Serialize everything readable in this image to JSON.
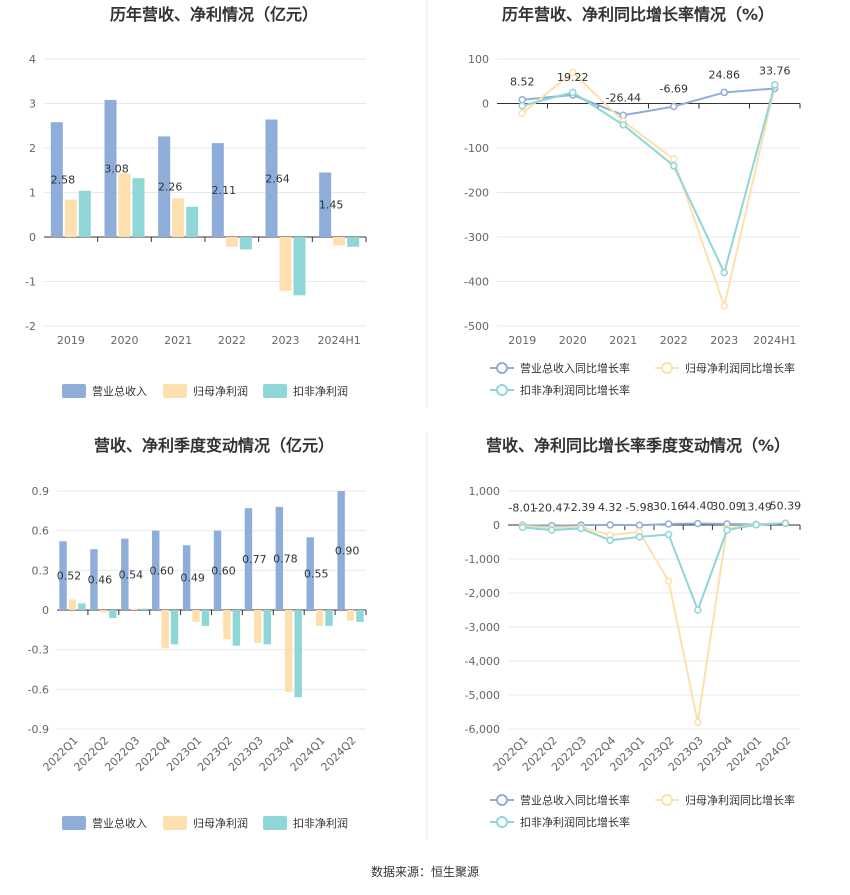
{
  "colors": {
    "revenue": "#8eadd9",
    "net_profit": "#fde0ad",
    "deducted_profit": "#8fd6d6",
    "line_revenue": "#8eadd9",
    "line_net": "#fde0ad",
    "line_deducted": "#8fd6d6",
    "divider": "#e8e8e8"
  },
  "source_text": "数据来源：恒生聚源",
  "chart_data": [
    {
      "type": "bar",
      "title": "历年营收、净利情况（亿元）",
      "categories": [
        "2019",
        "2020",
        "2021",
        "2022",
        "2023",
        "2024H1"
      ],
      "series": [
        {
          "name": "营业总收入",
          "values": [
            2.58,
            3.08,
            2.26,
            2.11,
            2.64,
            1.45
          ]
        },
        {
          "name": "归母净利润",
          "values": [
            0.84,
            1.43,
            0.87,
            -0.22,
            -1.21,
            -0.19
          ]
        },
        {
          "name": "扣非净利润",
          "values": [
            1.04,
            1.32,
            0.68,
            -0.28,
            -1.31,
            -0.22
          ]
        }
      ],
      "data_labels": [
        "2.58",
        "3.08",
        "2.26",
        "2.11",
        "2.64",
        "1.45"
      ],
      "yticks": [
        "4",
        "3",
        "2",
        "1",
        "0",
        "-1",
        "-2"
      ],
      "ylim": [
        -2,
        4
      ],
      "legend_position": "bottom",
      "grid": true
    },
    {
      "type": "line",
      "title": "历年营收、净利同比增长率情况（%）",
      "categories": [
        "2019",
        "2020",
        "2021",
        "2022",
        "2023",
        "2024H1"
      ],
      "series": [
        {
          "name": "营业总收入同比增长率",
          "values": [
            8.52,
            19.22,
            -26.44,
            -6.69,
            24.86,
            33.76
          ]
        },
        {
          "name": "归母净利润同比增长率",
          "values": [
            -22,
            70,
            -40,
            -125,
            -455,
            40
          ]
        },
        {
          "name": "扣非净利润同比增长率",
          "values": [
            -5,
            25,
            -48,
            -140,
            -380,
            42
          ]
        }
      ],
      "data_labels": [
        "8.52",
        "19.22",
        "-26.44",
        "-6.69",
        "24.86",
        "33.76"
      ],
      "yticks": [
        "100",
        "0",
        "-100",
        "-200",
        "-300",
        "-400",
        "-500"
      ],
      "ylim": [
        -500,
        100
      ],
      "legend_position": "bottom",
      "grid": true
    },
    {
      "type": "bar",
      "title": "营收、净利季度变动情况（亿元）",
      "categories": [
        "2022Q1",
        "2022Q2",
        "2022Q3",
        "2022Q4",
        "2023Q1",
        "2023Q2",
        "2023Q3",
        "2023Q4",
        "2024Q1",
        "2024Q2"
      ],
      "series": [
        {
          "name": "营业总收入",
          "values": [
            0.52,
            0.46,
            0.54,
            0.6,
            0.49,
            0.6,
            0.77,
            0.78,
            0.55,
            0.9
          ]
        },
        {
          "name": "归母净利润",
          "values": [
            0.08,
            -0.02,
            0.01,
            -0.29,
            -0.09,
            -0.22,
            -0.25,
            -0.62,
            -0.12,
            -0.08
          ]
        },
        {
          "name": "扣非净利润",
          "values": [
            0.05,
            -0.06,
            0.01,
            -0.26,
            -0.12,
            -0.27,
            -0.26,
            -0.66,
            -0.12,
            -0.09
          ]
        }
      ],
      "data_labels": [
        "0.52",
        "0.46",
        "0.54",
        "0.60",
        "0.49",
        "0.60",
        "0.77",
        "0.78",
        "0.55",
        "0.90"
      ],
      "yticks": [
        "0.9",
        "0.6",
        "0.3",
        "0",
        "-0.3",
        "-0.6",
        "-0.9"
      ],
      "ylim": [
        -0.9,
        0.9
      ],
      "legend_position": "bottom",
      "grid": true
    },
    {
      "type": "line",
      "title": "营收、净利同比增长率季度变动情况（%）",
      "categories": [
        "2022Q1",
        "2022Q2",
        "2022Q3",
        "2022Q4",
        "2023Q1",
        "2023Q2",
        "2023Q3",
        "2023Q4",
        "2024Q1",
        "2024Q2"
      ],
      "series": [
        {
          "name": "营业总收入同比增长率",
          "values": [
            -8.01,
            -20.47,
            -2.39,
            4.32,
            -5.98,
            30.16,
            44.4,
            30.09,
            13.49,
            50.39
          ]
        },
        {
          "name": "归母净利润同比增长率",
          "values": [
            -30,
            -100,
            -50,
            -300,
            -200,
            -1650,
            -5800,
            -100,
            20,
            60
          ]
        },
        {
          "name": "扣非净利润同比增长率",
          "values": [
            -70,
            -150,
            -100,
            -450,
            -350,
            -280,
            -2500,
            -150,
            10,
            50
          ]
        }
      ],
      "data_labels": [
        "-8.01",
        "-20.47",
        "-2.39",
        "4.32",
        "-5.98",
        "30.16",
        "44.40",
        "30.09",
        "13.49",
        "50.39"
      ],
      "yticks": [
        "1,000",
        "0",
        "-1,000",
        "-2,000",
        "-3,000",
        "-4,000",
        "-5,000",
        "-6,000"
      ],
      "ylim": [
        -6000,
        1000
      ],
      "legend_position": "bottom",
      "grid": true
    }
  ]
}
